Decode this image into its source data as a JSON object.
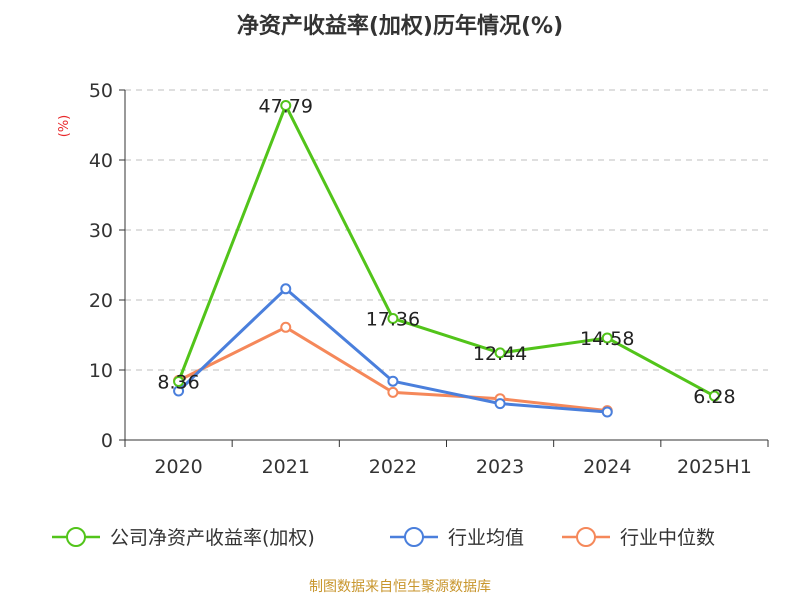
{
  "chart_data": {
    "type": "line",
    "title": "净资产收益率(加权)历年情况(%)",
    "ylabel": "(%)",
    "xlabel": "",
    "categories": [
      "2020",
      "2021",
      "2022",
      "2023",
      "2024",
      "2025H1"
    ],
    "yticks": [
      "0",
      "10",
      "20",
      "30",
      "40",
      "50"
    ],
    "ylim": [
      0,
      50
    ],
    "grid": true,
    "legend_position": "bottom",
    "series": [
      {
        "name": "公司净资产收益率(加权)",
        "color": "#52c41a",
        "values": [
          8.36,
          47.79,
          17.36,
          12.44,
          14.58,
          6.28
        ],
        "labels": [
          "8.36",
          "47.79",
          "17.36",
          "12.44",
          "14.58",
          "6.28"
        ]
      },
      {
        "name": "行业均值",
        "color": "#4a7fdc",
        "values": [
          7.0,
          21.6,
          8.4,
          5.2,
          4.0,
          null
        ]
      },
      {
        "name": "行业中位数",
        "color": "#f5885a",
        "values": [
          8.5,
          16.1,
          6.8,
          5.9,
          4.2,
          null
        ]
      }
    ],
    "source": "制图数据来自恒生聚源数据库"
  }
}
